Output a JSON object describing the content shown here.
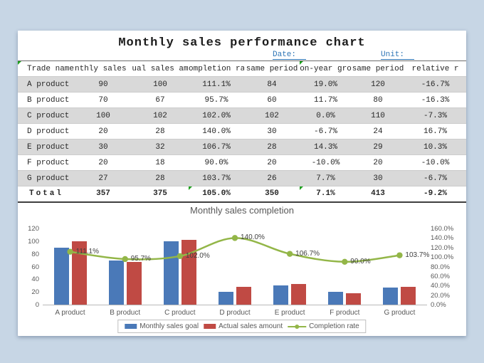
{
  "page": {
    "background": "#c7d6e5",
    "sheet_background": "#ffffff"
  },
  "header": {
    "title": "Monthly sales performance chart",
    "date_label": "Date:",
    "unit_label": "Unit:"
  },
  "table": {
    "columns": [
      "Trade name",
      "nthly sales g",
      "ual sales am",
      "ompletion rate",
      "same period",
      "on-year gro",
      "same period",
      "relative r"
    ],
    "rows": [
      {
        "name": "A product",
        "cells": [
          "90",
          "100",
          "111.1%",
          "84",
          "19.0%",
          "120",
          "-16.7%"
        ]
      },
      {
        "name": "B product",
        "cells": [
          "70",
          "67",
          "95.7%",
          "60",
          "11.7%",
          "80",
          "-16.3%"
        ]
      },
      {
        "name": "C product",
        "cells": [
          "100",
          "102",
          "102.0%",
          "102",
          "0.0%",
          "110",
          "-7.3%"
        ]
      },
      {
        "name": "D product",
        "cells": [
          "20",
          "28",
          "140.0%",
          "30",
          "-6.7%",
          "24",
          "16.7%"
        ]
      },
      {
        "name": "E product",
        "cells": [
          "30",
          "32",
          "106.7%",
          "28",
          "14.3%",
          "29",
          "10.3%"
        ]
      },
      {
        "name": "F product",
        "cells": [
          "20",
          "18",
          "90.0%",
          "20",
          "-10.0%",
          "20",
          "-10.0%"
        ]
      },
      {
        "name": "G product",
        "cells": [
          "27",
          "28",
          "103.7%",
          "26",
          "7.7%",
          "30",
          "-6.7%"
        ]
      }
    ],
    "total": {
      "name": "Total",
      "cells": [
        "357",
        "375",
        "105.0%",
        "350",
        "7.1%",
        "413",
        "-9.2%"
      ]
    }
  },
  "chart_data": {
    "type": "bar",
    "title": "Monthly sales completion",
    "categories": [
      "A product",
      "B product",
      "C product",
      "D product",
      "E product",
      "F product",
      "G product"
    ],
    "series": [
      {
        "name": "Monthly sales goal",
        "kind": "bar",
        "axis": "left",
        "color": "#4a79b8",
        "values": [
          90,
          70,
          100,
          20,
          30,
          20,
          27
        ]
      },
      {
        "name": "Actual sales amount",
        "kind": "bar",
        "axis": "left",
        "color": "#c04a44",
        "values": [
          100,
          67,
          102,
          28,
          32,
          18,
          28
        ]
      },
      {
        "name": "Completion rate",
        "kind": "line",
        "axis": "right",
        "color": "#93b648",
        "values": [
          111.1,
          95.7,
          102.0,
          140.0,
          106.7,
          90.0,
          103.7
        ],
        "labels": [
          "111.1%",
          "95.7%",
          "102.0%",
          "140.0%",
          "106.7%",
          "90.0%",
          "103.7%"
        ]
      }
    ],
    "left_axis": {
      "min": 0,
      "max": 120,
      "step": 20,
      "ticks": [
        "0",
        "20",
        "40",
        "60",
        "80",
        "100",
        "120"
      ]
    },
    "right_axis": {
      "min": 0,
      "max": 160,
      "step": 20,
      "ticks": [
        "0.0%",
        "20.0%",
        "40.0%",
        "60.0%",
        "80.0%",
        "100.0%",
        "120.0%",
        "140.0%",
        "160.0%"
      ]
    },
    "grid": false,
    "legend_position": "bottom"
  }
}
